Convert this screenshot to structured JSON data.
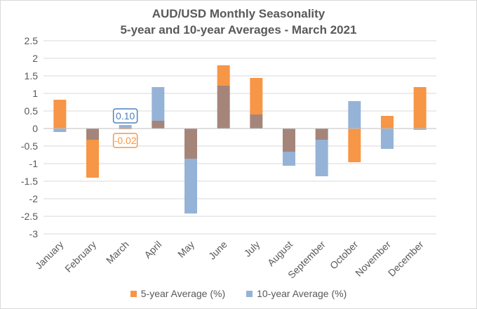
{
  "chart_data": {
    "type": "bar",
    "title": "AUD/USD Monthly Seasonality",
    "subtitle": "5-year and 10-year Averages - March 2021",
    "categories": [
      "January",
      "February",
      "March",
      "April",
      "May",
      "June",
      "July",
      "August",
      "September",
      "October",
      "November",
      "December"
    ],
    "series": [
      {
        "name": "5-year Average (%)",
        "color": "#f79646",
        "values": [
          0.82,
          -1.4,
          -0.02,
          0.22,
          -0.86,
          1.8,
          1.44,
          -0.66,
          -0.32,
          -0.96,
          0.36,
          1.18
        ]
      },
      {
        "name": "10-year Average (%)",
        "color": "#95b3d7",
        "values": [
          -0.1,
          -0.32,
          0.1,
          1.18,
          -2.42,
          1.22,
          0.4,
          -1.06,
          -1.36,
          0.78,
          -0.58,
          -0.04
        ]
      }
    ],
    "overlap_color": "#a5857a",
    "yticks": [
      "2.5",
      "2",
      "1.5",
      "1",
      "0.5",
      "0",
      "-0.5",
      "-1",
      "-1.5",
      "-2",
      "-2.5",
      "-3"
    ],
    "ylim": [
      -3,
      2.5
    ],
    "grid": true,
    "legend_position": "bottom",
    "annotations": [
      {
        "text": "0.10",
        "category": "March",
        "series": "10-year Average (%)",
        "color": "#4f81bd"
      },
      {
        "text": "-0.02",
        "category": "March",
        "series": "5-year Average (%)",
        "color": "#f79646"
      }
    ]
  }
}
